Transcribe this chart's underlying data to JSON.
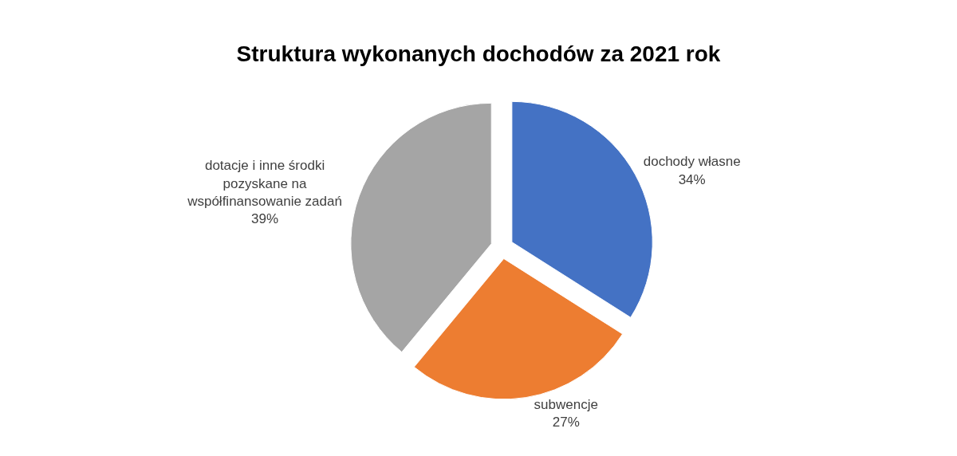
{
  "chart_data": {
    "type": "pie",
    "title": "Struktura wykonanych dochodów za 2021 rok",
    "categories": [
      "dochody własne",
      "subwencje",
      "dotacje i inne środki pozyskane na współfinansowanie zadań"
    ],
    "values": [
      34,
      27,
      39
    ],
    "value_labels": [
      "34%",
      "27%",
      "39%"
    ],
    "colors": [
      "#4472c4",
      "#ed7d31",
      "#a5a5a5"
    ],
    "legend": false
  }
}
